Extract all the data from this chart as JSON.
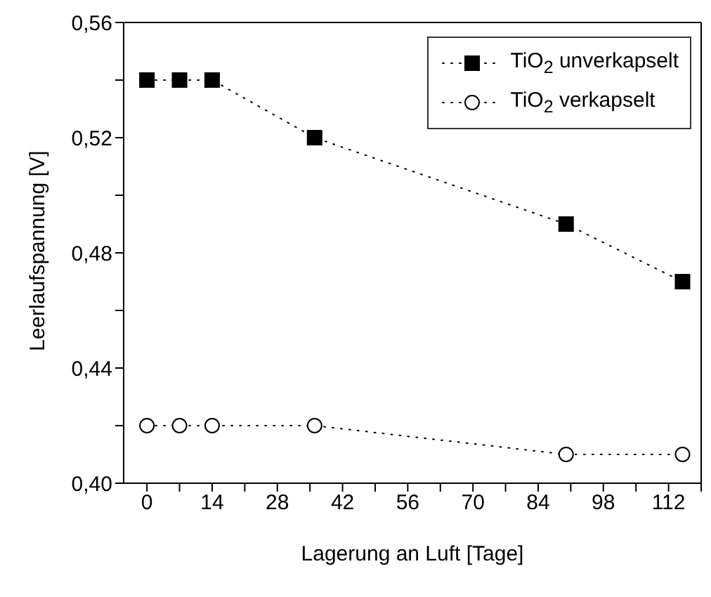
{
  "chart_data": {
    "type": "line",
    "xlabel": "Lagerung an Luft [Tage]",
    "ylabel": "Leerlaufspannung [V]",
    "xlim": [
      -5,
      119
    ],
    "ylim": [
      0.4,
      0.56
    ],
    "xticks": [
      0,
      {
        "value": 7,
        "label": null
      },
      14,
      {
        "value": 21,
        "label": null
      },
      28,
      {
        "value": 35,
        "label": null
      },
      42,
      {
        "value": 49,
        "label": null
      },
      56,
      {
        "value": 63,
        "label": null
      },
      70,
      {
        "value": 77,
        "label": null
      },
      84,
      {
        "value": 91,
        "label": null
      },
      98,
      {
        "value": 105,
        "label": null
      },
      112,
      {
        "value": 119,
        "label": null
      }
    ],
    "yticks": [
      {
        "value": 0.4,
        "label": "0,40"
      },
      {
        "value": 0.42,
        "label": null
      },
      {
        "value": 0.44,
        "label": "0,44"
      },
      {
        "value": 0.46,
        "label": null
      },
      {
        "value": 0.48,
        "label": "0,48"
      },
      {
        "value": 0.5,
        "label": null
      },
      {
        "value": 0.52,
        "label": "0,52"
      },
      {
        "value": 0.54,
        "label": null
      },
      {
        "value": 0.56,
        "label": "0,56"
      }
    ],
    "x": [
      0,
      7,
      14,
      36,
      90,
      115
    ],
    "series": [
      {
        "name": "TiO$_{2}$ unverkapselt",
        "color": "#000000",
        "marker": "square",
        "values": [
          0.54,
          0.54,
          0.54,
          0.52,
          0.49,
          0.47
        ]
      },
      {
        "name": "TiO$_{2}$ verkapselt",
        "color": "#000000",
        "marker": "circle",
        "values": [
          0.42,
          0.42,
          0.42,
          0.42,
          0.41,
          0.41
        ]
      }
    ],
    "line_style": "dotted",
    "grid": false,
    "legend": "top right"
  }
}
